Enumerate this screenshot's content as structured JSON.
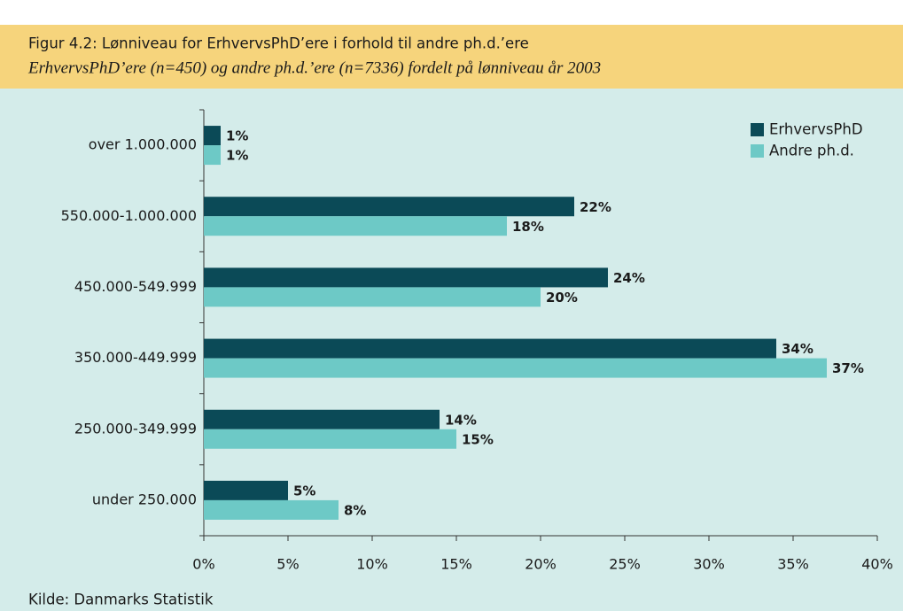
{
  "chart_data": {
    "type": "barh",
    "title": "Figur 4.2: Lønniveau for ErhvervsPhD’ere i forhold til andre ph.d.’ere",
    "subtitle": "ErhvervsPhD’ere (n=450) og andre ph.d.’ere (n=7336) fordelt på lønniveau år 2003",
    "source": "Kilde: Danmarks Statistik",
    "categories": [
      "over 1.000.000",
      "550.000-1.000.000",
      "450.000-549.999",
      "350.000-449.999",
      "250.000-349.999",
      "under 250.000"
    ],
    "series": [
      {
        "name": "ErhvervsPhD",
        "color": "#0b4a57",
        "values": [
          1,
          22,
          24,
          34,
          14,
          5
        ],
        "value_labels": [
          "1%",
          "22%",
          "24%",
          "34%",
          "14%",
          "5%"
        ]
      },
      {
        "name": "Andre ph.d.",
        "color": "#6dc9c6",
        "values": [
          1,
          18,
          20,
          37,
          15,
          8
        ],
        "value_labels": [
          "1%",
          "18%",
          "20%",
          "37%",
          "15%",
          "8%"
        ]
      }
    ],
    "xlim": [
      0,
      40
    ],
    "xticks": [
      {
        "value": 0,
        "label": "0%"
      },
      {
        "value": 5,
        "label": "5%"
      },
      {
        "value": 10,
        "label": "10%"
      },
      {
        "value": 15,
        "label": "15%"
      },
      {
        "value": 20,
        "label": "20%"
      },
      {
        "value": 25,
        "label": "25%"
      },
      {
        "value": 30,
        "label": "30%"
      },
      {
        "value": 35,
        "label": "35%"
      },
      {
        "value": 40,
        "label": "40%"
      }
    ],
    "legend": "top-right"
  }
}
